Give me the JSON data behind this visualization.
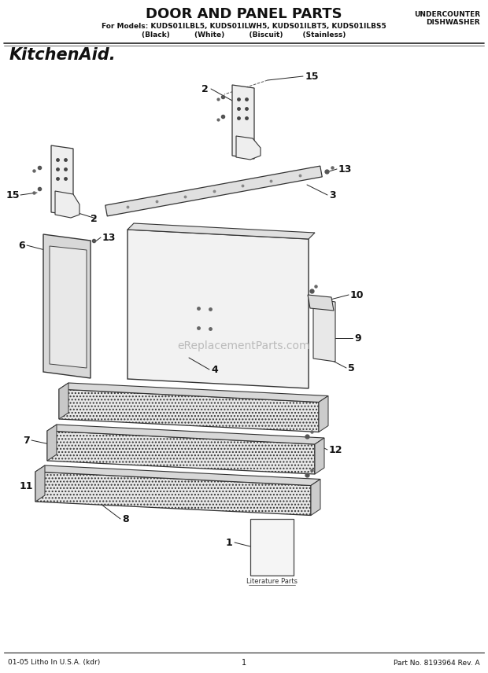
{
  "title": "DOOR AND PANEL PARTS",
  "subtitle_line1": "For Models: KUDS01ILBL5, KUDS01ILWH5, KUDS01ILBT5, KUDS01ILBS5",
  "subtitle_line2": "(Black)          (White)          (Biscuit)        (Stainless)",
  "top_right_line1": "UNDERCOUNTER",
  "top_right_line2": "DISHWASHER",
  "brand": "KitchenAid.",
  "footer_left": "01-05 Litho In U.S.A. (kdr)",
  "footer_center": "1",
  "footer_right": "Part No. 8193964 Rev. A",
  "watermark": "eReplacementParts.com",
  "bg_color": "#ffffff"
}
